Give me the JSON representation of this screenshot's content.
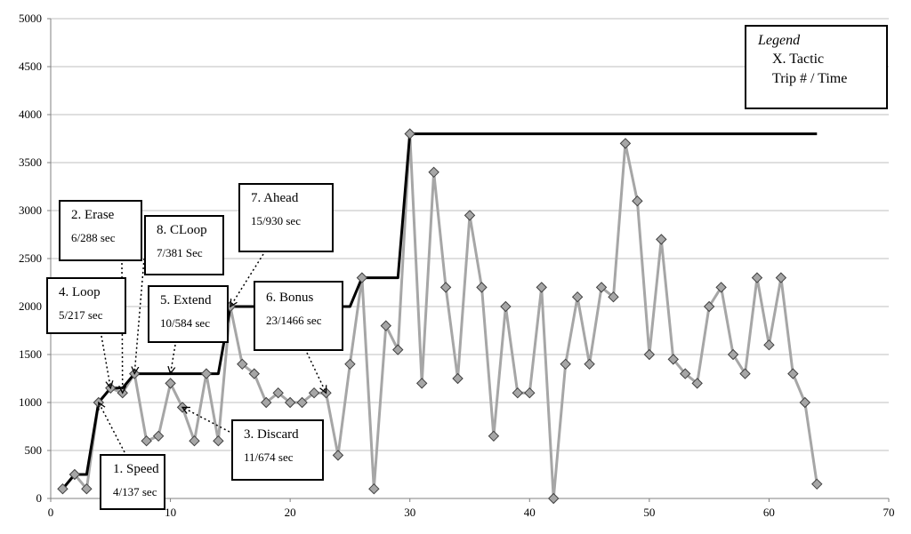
{
  "chart_data": {
    "type": "line",
    "xlim": [
      0,
      70
    ],
    "ylim": [
      0,
      5000
    ],
    "x_ticks": [
      "0",
      "10",
      "20",
      "30",
      "40",
      "50",
      "60",
      "70"
    ],
    "y_ticks": [
      "0",
      "500",
      "1000",
      "1500",
      "2000",
      "2500",
      "3000",
      "3500",
      "4000",
      "4500",
      "5000"
    ],
    "grid": "horizontal",
    "series": [
      {
        "style": "gray line with diamond markers",
        "color": "#a6a6a6",
        "marker_color": "#a6a6a6",
        "x": [
          1,
          2,
          3,
          4,
          5,
          6,
          7,
          8,
          9,
          10,
          11,
          12,
          13,
          14,
          15,
          16,
          17,
          18,
          19,
          20,
          21,
          22,
          23,
          24,
          25,
          26,
          27,
          28,
          29,
          30,
          31,
          32,
          33,
          34,
          35,
          36,
          37,
          38,
          39,
          40,
          41,
          42,
          43,
          44,
          45,
          46,
          47,
          48,
          49,
          50,
          51,
          52,
          53,
          54,
          55,
          56,
          57,
          58,
          59,
          60,
          61,
          62,
          63,
          64
        ],
        "values": [
          100,
          250,
          100,
          1000,
          1150,
          1100,
          1300,
          600,
          650,
          1200,
          950,
          600,
          1300,
          600,
          2000,
          1400,
          1300,
          1000,
          1100,
          1000,
          1000,
          1100,
          1100,
          450,
          1400,
          2300,
          100,
          1800,
          1550,
          3800,
          1200,
          3400,
          2200,
          1250,
          2950,
          2200,
          650,
          2000,
          1100,
          1100,
          2200,
          0,
          1400,
          2100,
          1400,
          2200,
          2100,
          3700,
          3100,
          1500,
          2700,
          1450,
          1300,
          1200,
          2000,
          2200,
          1500,
          1300,
          2300,
          1600,
          2300,
          1300,
          1000,
          150
        ]
      },
      {
        "style": "black step line",
        "color": "#000000",
        "x": [
          1,
          2,
          3,
          4,
          5,
          6,
          7,
          8,
          9,
          10,
          11,
          12,
          13,
          14,
          15,
          16,
          17,
          18,
          19,
          20,
          21,
          22,
          23,
          24,
          25,
          26,
          27,
          28,
          29,
          30,
          31,
          40,
          50,
          60,
          64
        ],
        "values": [
          100,
          250,
          250,
          1000,
          1150,
          1150,
          1300,
          1300,
          1300,
          1300,
          1300,
          1300,
          1300,
          1300,
          2000,
          2000,
          2000,
          2000,
          2000,
          2000,
          2000,
          2000,
          2000,
          2000,
          2000,
          2300,
          2300,
          2300,
          2300,
          3800,
          3800,
          3800,
          3800,
          3800,
          3800
        ]
      }
    ],
    "legend": {
      "placement": "top-right",
      "title": "Legend",
      "line1": "X. Tactic",
      "line2": "Trip # / Time"
    },
    "annotations": [
      {
        "id": "speed",
        "title": "1. Speed",
        "detail": "4/137 sec",
        "x": 4,
        "y": 1000
      },
      {
        "id": "erase",
        "title": "2. Erase",
        "detail": "6/288 sec",
        "x": 6,
        "y": 1100
      },
      {
        "id": "discard",
        "title": "3. Discard",
        "detail": "11/674 sec",
        "x": 11,
        "y": 950
      },
      {
        "id": "loop",
        "title": "4. Loop",
        "detail": "5/217 sec",
        "x": 5,
        "y": 1150
      },
      {
        "id": "extend",
        "title": "5. Extend",
        "detail": "10/584 sec",
        "x": 10,
        "y": 1300
      },
      {
        "id": "bonus",
        "title": "6. Bonus",
        "detail": "23/1466 sec",
        "x": 23,
        "y": 1100
      },
      {
        "id": "ahead",
        "title": "7. Ahead",
        "detail": "15/930 sec",
        "x": 15,
        "y": 2000
      },
      {
        "id": "cloop",
        "title": "8. CLoop",
        "detail": "7/381 Sec",
        "x": 7,
        "y": 1300
      }
    ]
  }
}
